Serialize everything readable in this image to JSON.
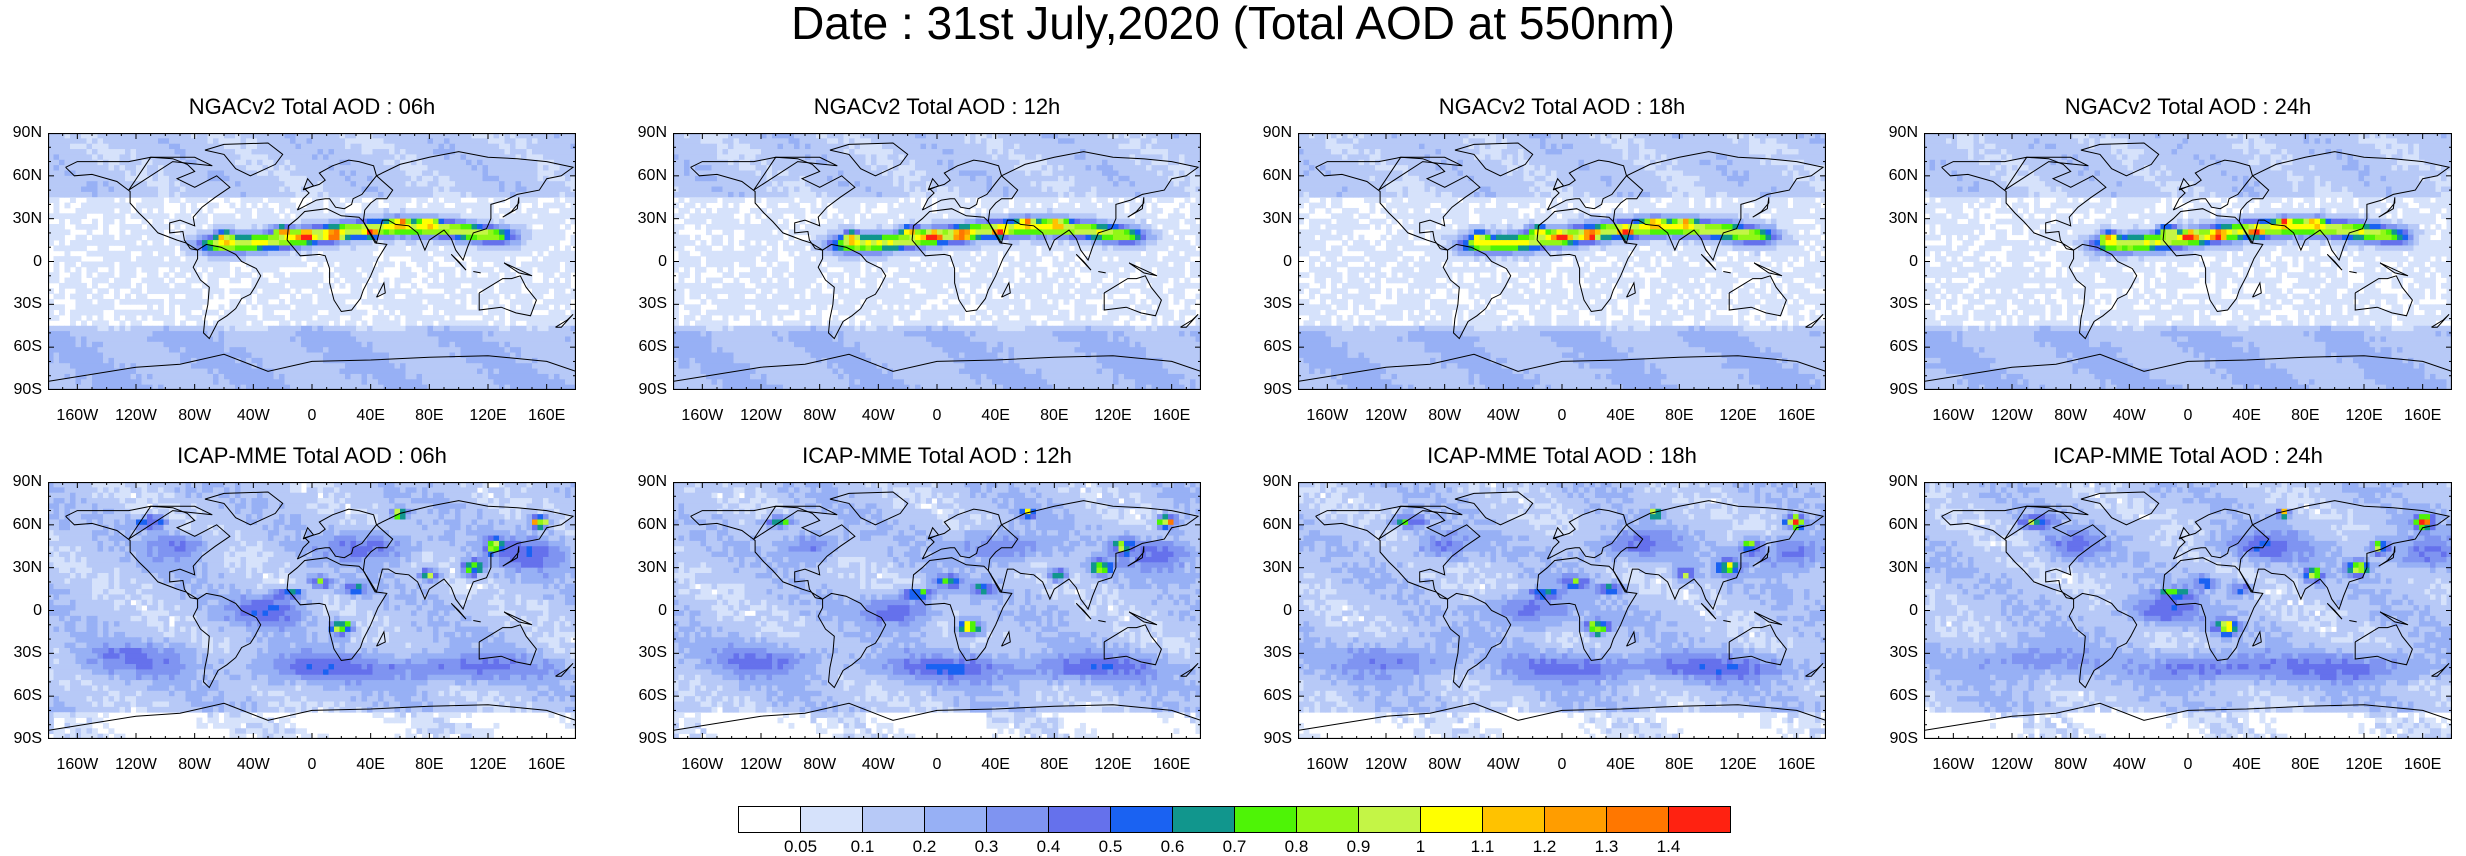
{
  "figure": {
    "title": "Date : 31st July,2020 (Total AOD at 550nm)"
  },
  "panels": [
    {
      "title": "NGACv2 Total AOD : 06h",
      "model": "NGACv2",
      "forecast_hour": "06h"
    },
    {
      "title": "NGACv2 Total AOD : 12h",
      "model": "NGACv2",
      "forecast_hour": "12h"
    },
    {
      "title": "NGACv2 Total AOD : 18h",
      "model": "NGACv2",
      "forecast_hour": "18h"
    },
    {
      "title": "NGACv2 Total AOD : 24h",
      "model": "NGACv2",
      "forecast_hour": "24h"
    },
    {
      "title": "ICAP-MME Total AOD : 06h",
      "model": "ICAP-MME",
      "forecast_hour": "06h"
    },
    {
      "title": "ICAP-MME Total AOD : 12h",
      "model": "ICAP-MME",
      "forecast_hour": "12h"
    },
    {
      "title": "ICAP-MME Total AOD : 18h",
      "model": "ICAP-MME",
      "forecast_hour": "18h"
    },
    {
      "title": "ICAP-MME Total AOD : 24h",
      "model": "ICAP-MME",
      "forecast_hour": "24h"
    }
  ],
  "axes": {
    "lat_labels": [
      "90N",
      "60N",
      "30N",
      "0",
      "30S",
      "60S",
      "90S"
    ],
    "lon_labels": [
      "160W",
      "120W",
      "80W",
      "40W",
      "0",
      "40E",
      "80E",
      "120E",
      "160E"
    ],
    "lat_values": [
      90,
      60,
      30,
      0,
      -30,
      -60,
      -90
    ],
    "lon_values": [
      -160,
      -120,
      -80,
      -40,
      0,
      40,
      80,
      120,
      160
    ],
    "lon_range": [
      -180,
      180
    ],
    "lat_range": [
      -90,
      90
    ]
  },
  "colorbar": {
    "labels": [
      "0.05",
      "0.1",
      "0.2",
      "0.3",
      "0.4",
      "0.5",
      "0.6",
      "0.7",
      "0.8",
      "0.9",
      "1",
      "1.1",
      "1.2",
      "1.3",
      "1.4"
    ],
    "colors": [
      "#ffffff",
      "#d6e2fb",
      "#b7c9f7",
      "#97b0f5",
      "#7f94f1",
      "#6571ec",
      "#1a62f2",
      "#11968d",
      "#4ef406",
      "#92f716",
      "#c4f546",
      "#ffff00",
      "#ffc200",
      "#ff9d00",
      "#ff7700",
      "#ff2211"
    ]
  }
}
